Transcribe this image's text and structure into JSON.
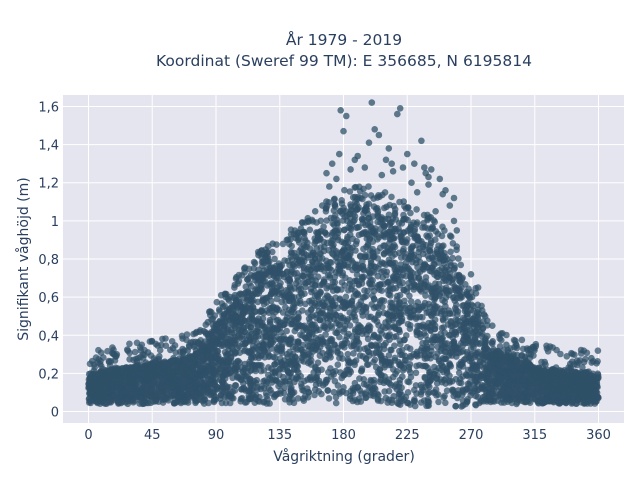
{
  "chart_data": {
    "type": "scatter",
    "title_line1": "År 1979 - 2019",
    "title_line2": "Koordinat (Sweref 99 TM): E 356685, N 6195814",
    "xlabel": "Vågriktning (grader)",
    "ylabel": "Signifikant våghöjd (m)",
    "xlim": [
      -18,
      378
    ],
    "ylim": [
      -0.06,
      1.66
    ],
    "x_ticks": [
      0,
      45,
      90,
      135,
      180,
      225,
      270,
      315,
      360
    ],
    "x_tick_labels": [
      "0",
      "45",
      "90",
      "135",
      "180",
      "225",
      "270",
      "315",
      "360"
    ],
    "y_ticks": [
      0,
      0.2,
      0.4,
      0.6,
      0.8,
      1.0,
      1.2,
      1.4,
      1.6
    ],
    "y_tick_labels": [
      "0",
      "0,2",
      "0,4",
      "0,6",
      "0,8",
      "1",
      "1,2",
      "1,4",
      "1,6"
    ],
    "grid": true,
    "marker_color": "#2f5168",
    "background_color": "#e5e5ef",
    "envelope": {
      "x": [
        0,
        15,
        30,
        45,
        60,
        75,
        90,
        105,
        120,
        135,
        150,
        165,
        180,
        195,
        210,
        225,
        240,
        255,
        270,
        285,
        300,
        315,
        330,
        345,
        360
      ],
      "y_upper": [
        0.2,
        0.22,
        0.24,
        0.26,
        0.27,
        0.3,
        0.46,
        0.6,
        0.72,
        0.8,
        0.87,
        0.97,
        1.05,
        1.07,
        1.03,
        0.98,
        0.93,
        0.82,
        0.6,
        0.33,
        0.28,
        0.24,
        0.22,
        0.21,
        0.2
      ],
      "y_lower": [
        0.04,
        0.04,
        0.04,
        0.04,
        0.04,
        0.04,
        0.04,
        0.04,
        0.04,
        0.04,
        0.04,
        0.04,
        0.04,
        0.04,
        0.04,
        0.03,
        0.02,
        0.02,
        0.03,
        0.04,
        0.04,
        0.04,
        0.04,
        0.04,
        0.04
      ]
    },
    "outliers": {
      "x": [
        165,
        168,
        170,
        172,
        175,
        177,
        178,
        180,
        182,
        185,
        188,
        190,
        192,
        195,
        198,
        200,
        202,
        205,
        207,
        210,
        212,
        214,
        215,
        218,
        220,
        222,
        225,
        228,
        230,
        232,
        235,
        238,
        240,
        242,
        245,
        248,
        250,
        252,
        255,
        258,
        260,
        140,
        145,
        150,
        155,
        160,
        130,
        125,
        120,
        110,
        100,
        95,
        270,
        275,
        280,
        285,
        290,
        295,
        300,
        20,
        35,
        42,
        50,
        60,
        322,
        340,
        355,
        18,
        70,
        258,
        237,
        240
      ],
      "y": [
        1.08,
        1.25,
        1.18,
        1.3,
        1.22,
        1.35,
        1.58,
        1.47,
        1.55,
        1.27,
        1.32,
        1.34,
        1.12,
        1.28,
        1.41,
        1.62,
        1.48,
        1.45,
        1.24,
        1.32,
        1.38,
        1.3,
        1.26,
        1.56,
        1.59,
        1.28,
        1.35,
        1.2,
        1.3,
        1.15,
        1.42,
        1.25,
        1.19,
        1.27,
        1.05,
        1.22,
        1.14,
        1.16,
        1.08,
        1.0,
        0.95,
        0.9,
        0.93,
        0.96,
        1.0,
        1.05,
        0.88,
        0.85,
        0.82,
        0.75,
        0.6,
        0.55,
        0.72,
        0.65,
        0.5,
        0.45,
        0.4,
        0.35,
        0.3,
        0.3,
        0.28,
        0.31,
        0.29,
        0.28,
        0.26,
        0.25,
        0.28,
        0.3,
        0.32,
        1.12,
        1.28,
        1.23
      ]
    }
  }
}
